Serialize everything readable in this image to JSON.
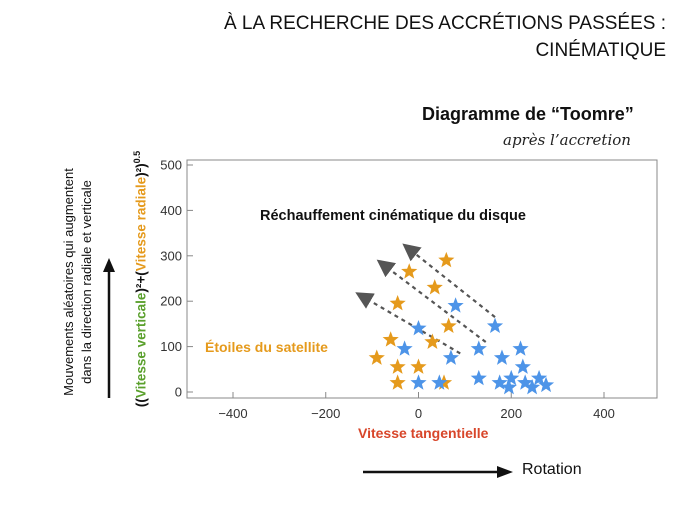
{
  "slide": {
    "title_line1": "À LA RECHERCHE DES ACCRÉTIONS PASSÉES :",
    "title_line2": "CINÉMATIQUE",
    "side_label_line1": "Mouvements aléatoires qui augmentent",
    "side_label_line2": "dans la direction radiale et verticale",
    "rotation_label": "Rotation"
  },
  "chart_data": {
    "type": "scatter",
    "title": "Diagramme de “Toomre”",
    "subtitle": "après l’accretion",
    "xlabel": "Vitesse tangentielle",
    "ylabel": {
      "open": "((",
      "vertical": "Vitesse verticale",
      "mid": ")²+(",
      "radial": "Vitesse radiale",
      "close": ")²)",
      "exponent": "0.5"
    },
    "xlim": [
      -500,
      500
    ],
    "ylim": [
      0,
      500
    ],
    "xticks": [
      -400,
      -200,
      0,
      200,
      400
    ],
    "yticks": [
      0,
      100,
      200,
      300,
      400,
      500
    ],
    "grid": false,
    "annotations": {
      "heating": "Réchauffement cinématique du disque",
      "satellite": "Étoiles du satellite"
    },
    "colors": {
      "satellite": "#e59a1c",
      "disk": "#4d94e8",
      "arrows": "#555555",
      "xlabel": "#d8462a"
    },
    "series": [
      {
        "name": "Étoiles du satellite",
        "color": "#e59a1c",
        "points": [
          [
            -90,
            75
          ],
          [
            -60,
            115
          ],
          [
            -45,
            55
          ],
          [
            -45,
            20
          ],
          [
            -45,
            195
          ],
          [
            -20,
            265
          ],
          [
            0,
            55
          ],
          [
            30,
            110
          ],
          [
            35,
            230
          ],
          [
            55,
            20
          ],
          [
            60,
            290
          ],
          [
            65,
            145
          ]
        ]
      },
      {
        "name": "disk",
        "color": "#4d94e8",
        "points": [
          [
            -30,
            95
          ],
          [
            0,
            20
          ],
          [
            0,
            140
          ],
          [
            45,
            20
          ],
          [
            70,
            75
          ],
          [
            80,
            190
          ],
          [
            130,
            95
          ],
          [
            130,
            30
          ],
          [
            165,
            145
          ],
          [
            175,
            20
          ],
          [
            180,
            75
          ],
          [
            195,
            10
          ],
          [
            200,
            30
          ],
          [
            220,
            95
          ],
          [
            225,
            55
          ],
          [
            230,
            20
          ],
          [
            245,
            10
          ],
          [
            260,
            30
          ],
          [
            275,
            15
          ]
        ]
      }
    ],
    "arrows": [
      {
        "from": [
          165,
          165
        ],
        "to": [
          -20,
          315
        ]
      },
      {
        "from": [
          145,
          110
        ],
        "to": [
          -75,
          280
        ]
      },
      {
        "from": [
          90,
          85
        ],
        "to": [
          -120,
          210
        ]
      }
    ]
  }
}
